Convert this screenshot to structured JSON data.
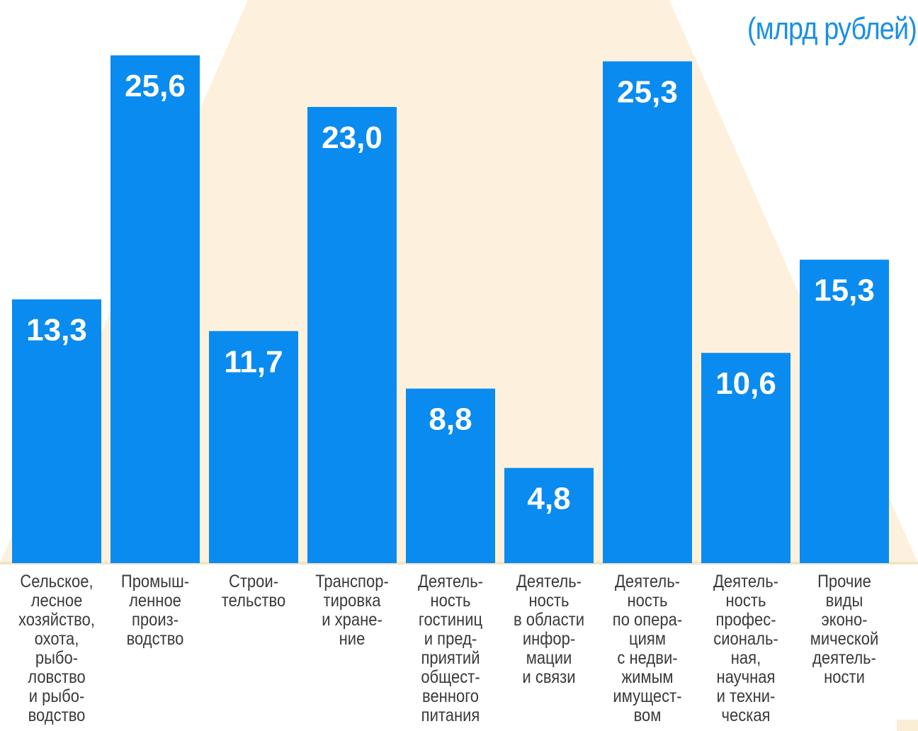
{
  "unit_label": "(млрд рублей)",
  "colors": {
    "bar": "#0a8bef",
    "value_text": "#ffffff",
    "unit_text": "#1a8fe6",
    "background_shape": "#fdf1dd",
    "baseline": "#f3e3c6"
  },
  "chart_data": {
    "type": "bar",
    "title": "",
    "xlabel": "",
    "ylabel": "",
    "unit": "(млрд рублей)",
    "ylim": [
      0,
      28
    ],
    "grid": false,
    "legend": "none",
    "categories": [
      "Сельское,\nлесное\nхозяйство,\nохота,\nрыбо-\nловство\nи рыбо-\nводство",
      "Промыш-\nленное\nпроиз-\nводство",
      "Строи-\nтельство",
      "Транспор-\nтировка\nи хране-\nние",
      "Деятель-\nность\nгостиниц\nи пред-\nприятий\nобщест-\nвенного\nпитания",
      "Деятель-\nность\nв области\nинфор-\nмации\nи связи",
      "Деятель-\nность\nпо опера-\nциям\nс недви-\nжимым\nимущест-\nвом",
      "Деятель-\nность\nпрофес-\nсиональ-\nная,\nнаучная\nи техни-\nческая",
      "Прочие\nвиды\nэконо-\nмической\nдеятель-\nности"
    ],
    "values": [
      13.3,
      25.6,
      11.7,
      23.0,
      8.8,
      4.8,
      25.3,
      10.6,
      15.3
    ],
    "value_labels": [
      "13,3",
      "25,6",
      "11,7",
      "23,0",
      "8,8",
      "4,8",
      "25,3",
      "10,6",
      "15,3"
    ]
  }
}
